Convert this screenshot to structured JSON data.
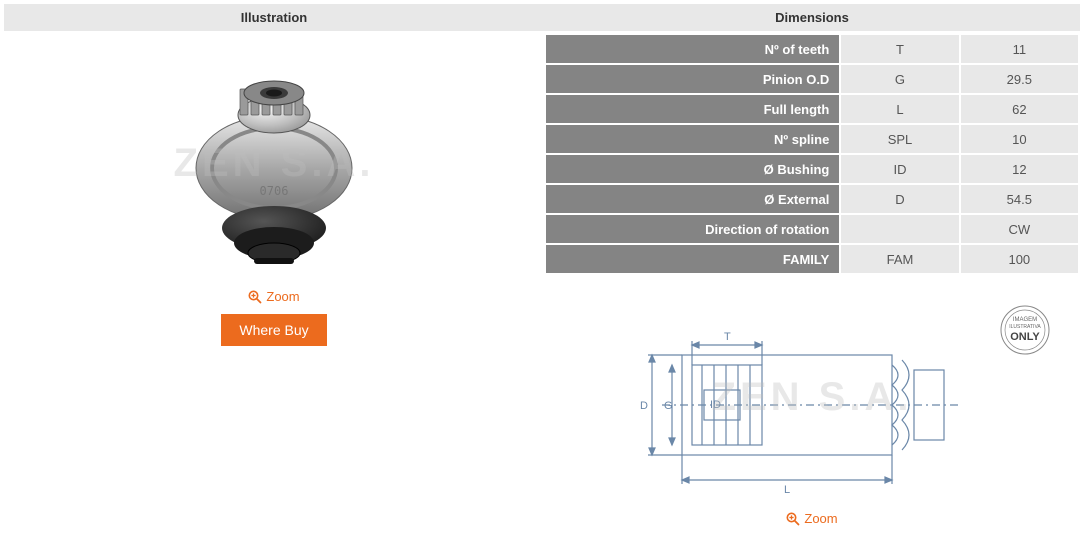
{
  "headers": {
    "illustration": "Illustration",
    "dimensions": "Dimensions"
  },
  "watermark": "ZEN S.A.",
  "zoom_label": "Zoom",
  "where_buy_label": "Where Buy",
  "only_badge": {
    "line1": "IMAGEM",
    "line2": "ILUSTRATIVA",
    "line3": "ONLY"
  },
  "colors": {
    "header_bg": "#e8e8e8",
    "label_bg": "#848484",
    "cell_bg": "#e8e8e8",
    "accent": "#ec6b1e"
  },
  "dimensions_table": [
    {
      "label": "Nº of teeth",
      "symbol": "T",
      "value": "11"
    },
    {
      "label": "Pinion O.D",
      "symbol": "G",
      "value": "29.5"
    },
    {
      "label": "Full length",
      "symbol": "L",
      "value": "62"
    },
    {
      "label": "Nº spline",
      "symbol": "SPL",
      "value": "10"
    },
    {
      "label": "Ø Bushing",
      "symbol": "ID",
      "value": "12"
    },
    {
      "label": "Ø External",
      "symbol": "D",
      "value": "54.5"
    },
    {
      "label": "Direction of rotation",
      "symbol": "",
      "value": "CW"
    },
    {
      "label": "FAMILY",
      "symbol": "FAM",
      "value": "100"
    }
  ],
  "diagram_labels": {
    "D": "D",
    "G": "G",
    "ID": "ID",
    "T": "T",
    "L": "L"
  }
}
